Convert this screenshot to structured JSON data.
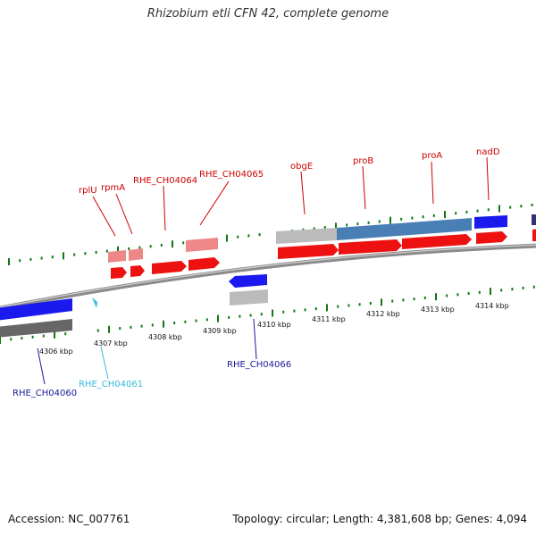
{
  "title": "Rhizobium etli CFN 42, complete genome",
  "footer": {
    "accession": "Accession: NC_007761",
    "summary": "Topology: circular; Length: 4,381,608 bp; Genes: 4,094"
  },
  "colors": {
    "forward_gene": "#ee1111",
    "forward_gene_label": "#cc0000",
    "reverse_gene": "#1a1aee",
    "reverse_gene_label": "#1a1a99",
    "trna": "#33bbdd",
    "pseudo_gray": "#bbbbbb",
    "operon_blue": "#4a7fb5",
    "tick": "#117711",
    "backbone": "#888888"
  },
  "scale": {
    "unit": "kbp",
    "ticks": [
      "4306 kbp",
      "4307 kbp",
      "4308 kbp",
      "4309 kbp",
      "4310 kbp",
      "4311 kbp",
      "4312 kbp",
      "4313 kbp",
      "4314 kbp"
    ]
  },
  "genes": {
    "forward": [
      "rplU",
      "rpmA",
      "RHE_CH04064",
      "RHE_CH04065",
      "obgE",
      "proB",
      "proA",
      "nadD"
    ],
    "reverse": [
      "RHE_CH04060",
      "RHE_CH04061",
      "RHE_CH04066"
    ]
  }
}
